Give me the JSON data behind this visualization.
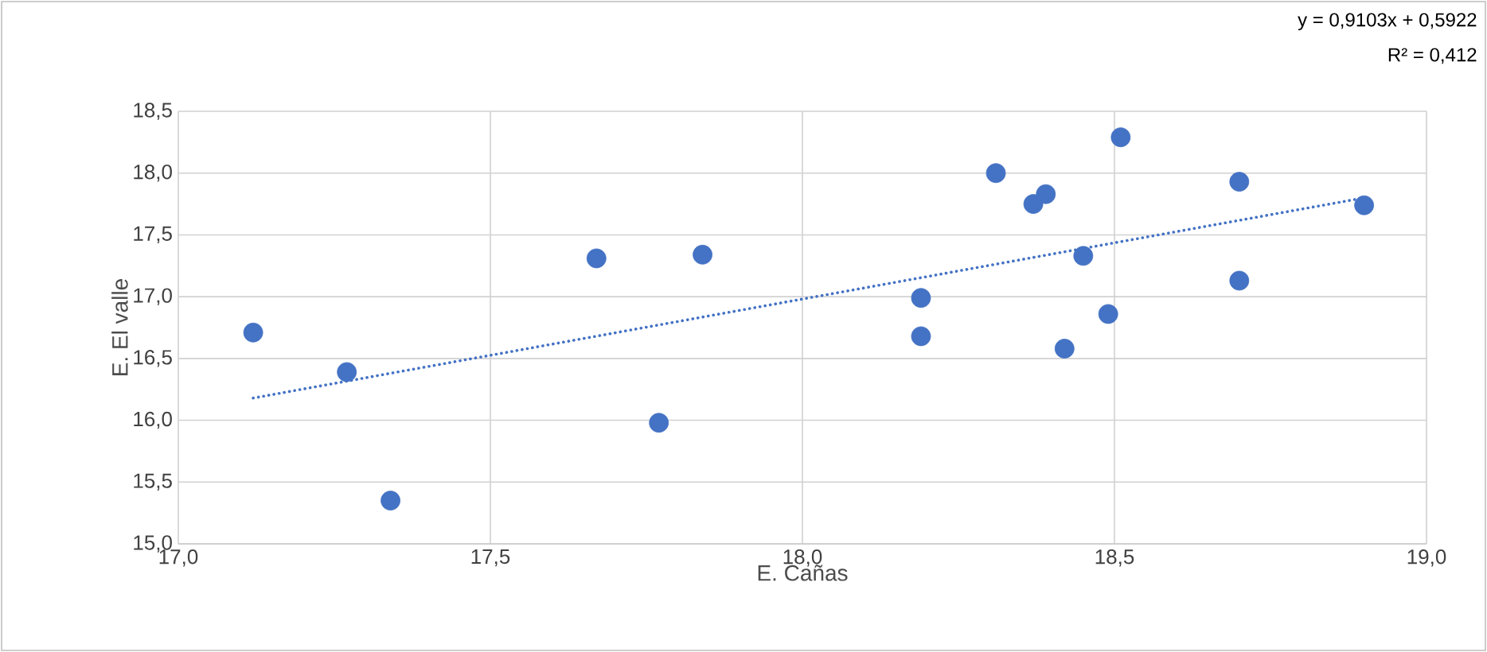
{
  "chart_data": {
    "type": "scatter",
    "xlabel": "E. Cañas",
    "ylabel": "E. El valle",
    "annotations": [
      "y = 0,9103x + 0,5922",
      "R² = 0,412"
    ],
    "xlim": [
      17.0,
      19.0
    ],
    "ylim": [
      15.0,
      18.5
    ],
    "xticks": [
      {
        "value": 17.0,
        "label": "17,0"
      },
      {
        "value": 17.5,
        "label": "17,5"
      },
      {
        "value": 18.0,
        "label": "18,0"
      },
      {
        "value": 18.5,
        "label": "18,5"
      },
      {
        "value": 19.0,
        "label": "19,0"
      }
    ],
    "yticks": [
      {
        "value": 15.0,
        "label": "15,0"
      },
      {
        "value": 15.5,
        "label": "15,5"
      },
      {
        "value": 16.0,
        "label": "16,0"
      },
      {
        "value": 16.5,
        "label": "16,5"
      },
      {
        "value": 17.0,
        "label": "17,0"
      },
      {
        "value": 17.5,
        "label": "17,5"
      },
      {
        "value": 18.0,
        "label": "18,0"
      },
      {
        "value": 18.5,
        "label": "18,5"
      }
    ],
    "grid": true,
    "series": [
      {
        "color": "#4472c4",
        "marker": "circle",
        "x": [
          17.12,
          17.27,
          17.34,
          17.67,
          17.77,
          17.84,
          18.19,
          18.19,
          18.31,
          18.37,
          18.39,
          18.45,
          18.42,
          18.49,
          18.51,
          18.7,
          18.7,
          18.9
        ],
        "values": [
          16.71,
          16.39,
          15.35,
          17.31,
          15.98,
          17.34,
          16.99,
          16.68,
          18.0,
          17.75,
          17.83,
          17.33,
          16.58,
          16.86,
          18.29,
          17.93,
          17.13,
          17.74
        ]
      },
      {
        "type": "line",
        "color": "#4472c4",
        "marker": "none",
        "line_style": "dotted",
        "x": [
          17.12,
          18.9
        ],
        "values": [
          16.18,
          17.8
        ]
      }
    ]
  }
}
